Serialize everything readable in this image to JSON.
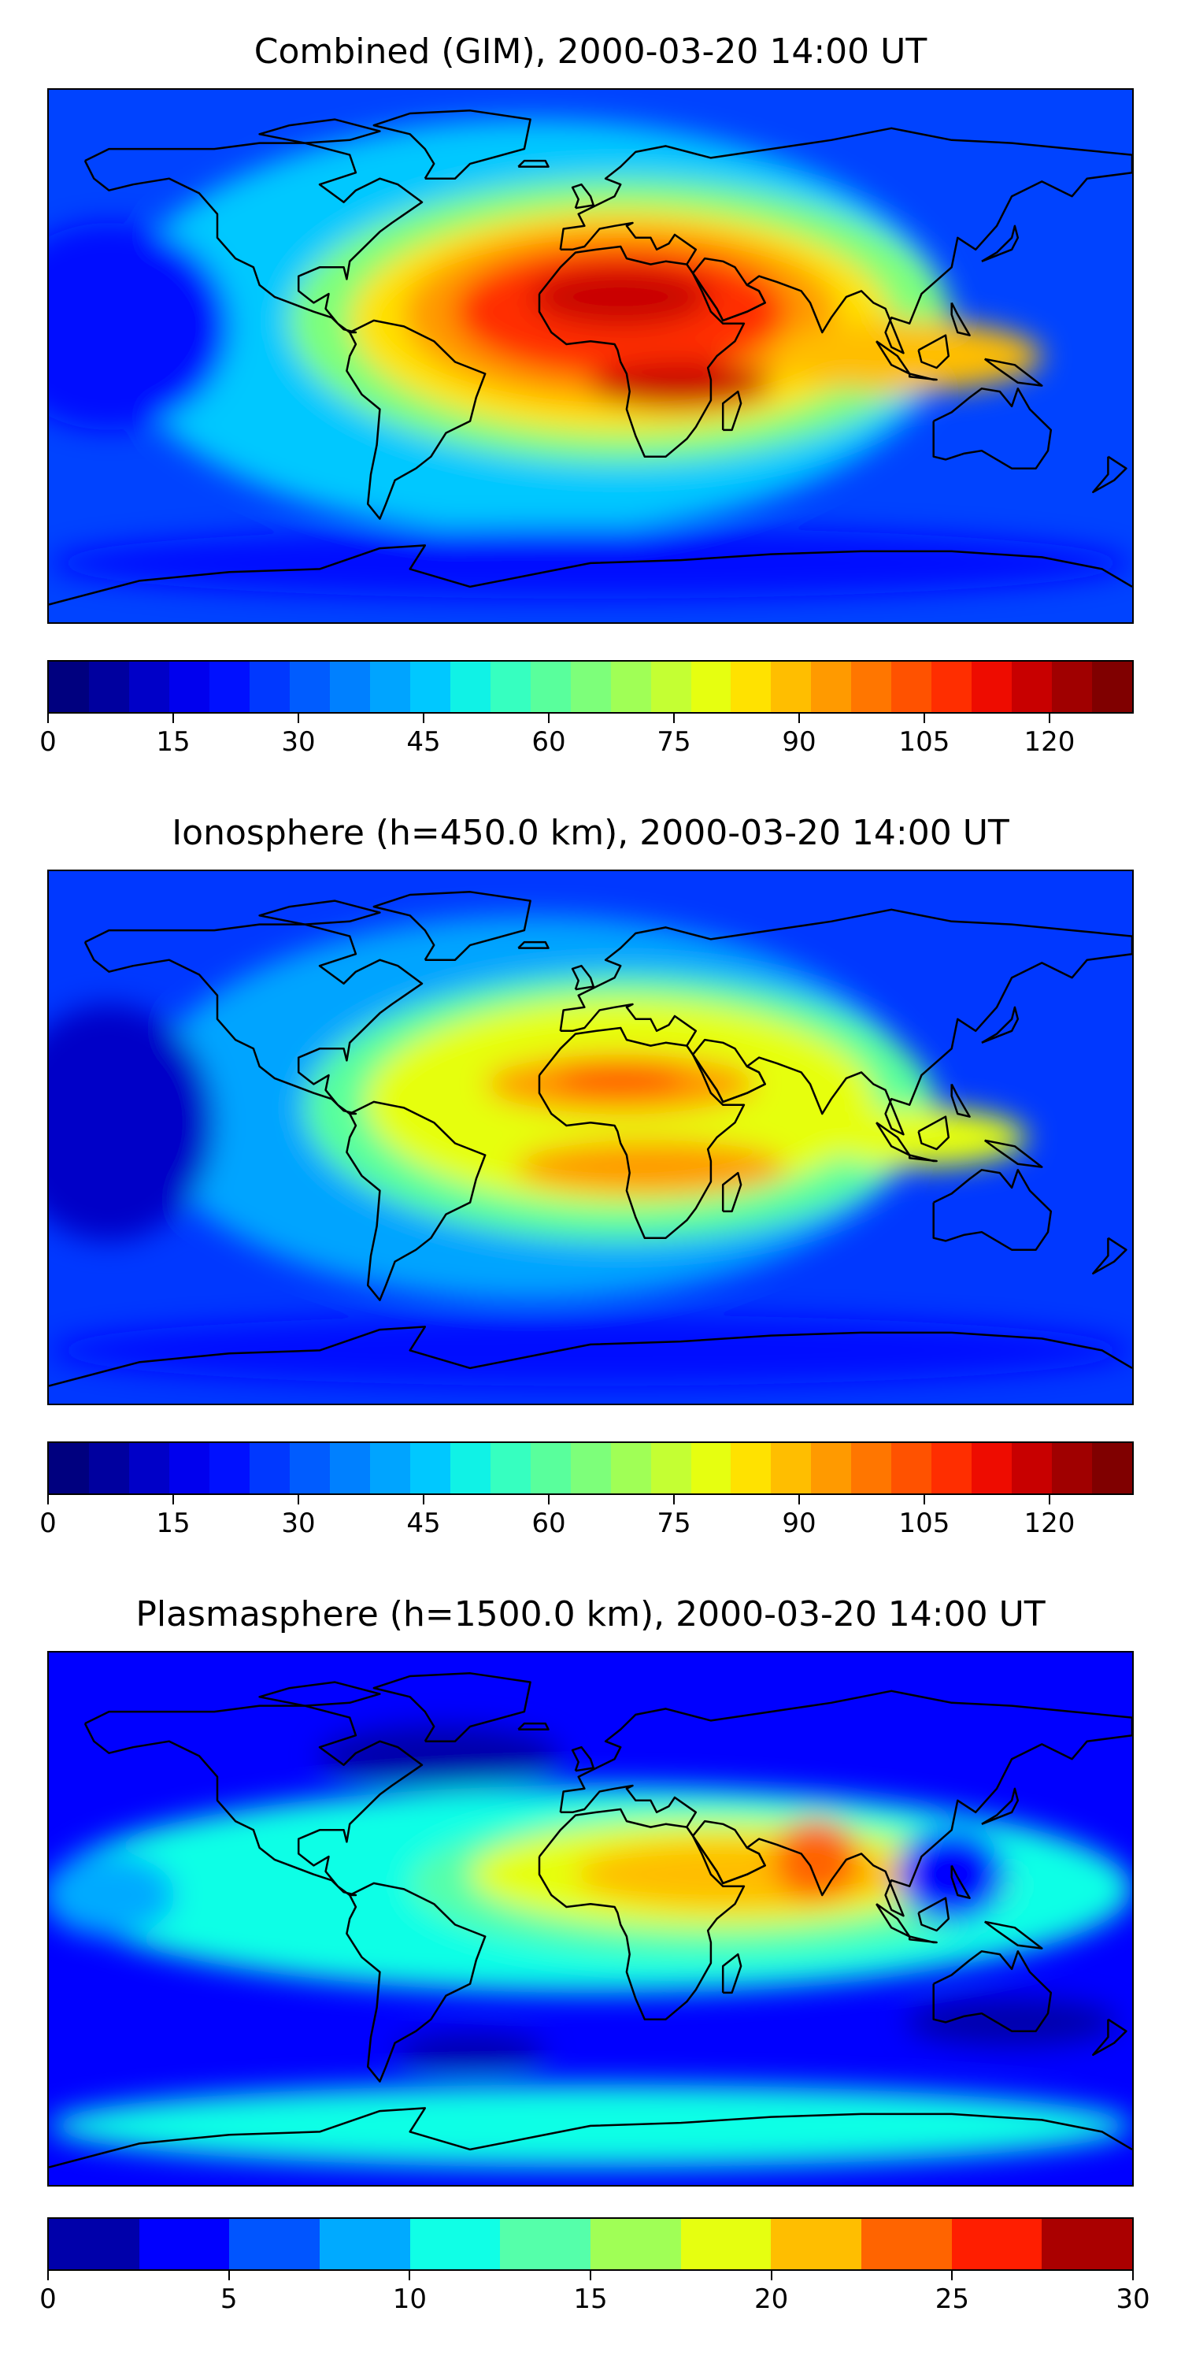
{
  "panels": [
    {
      "title": "Combined (GIM), 2000-03-20 14:00 UT",
      "colorbar": {
        "min": 0,
        "max": 130,
        "ticks": [
          "0",
          "15",
          "30",
          "45",
          "60",
          "75",
          "90",
          "105",
          "120"
        ],
        "tick_values": [
          0,
          15,
          30,
          45,
          60,
          75,
          90,
          105,
          120
        ],
        "colors": [
          "#00007f",
          "#00009f",
          "#0000c8",
          "#0000ee",
          "#0010ff",
          "#0038ff",
          "#005cff",
          "#0080ff",
          "#00a4ff",
          "#00c8ff",
          "#10f2e6",
          "#36ffc0",
          "#59ff9c",
          "#7dff7a",
          "#a0ff56",
          "#c4ff33",
          "#e6ff10",
          "#ffe200",
          "#ffbe00",
          "#ff9a00",
          "#ff7600",
          "#ff5200",
          "#ff2e00",
          "#ee0c00",
          "#c80000",
          "#a00000",
          "#800000"
        ]
      },
      "field": {
        "background": "#0043ff",
        "blobs": [
          {
            "lon": -20,
            "lat": 10,
            "rx": 140,
            "ry": 70,
            "color": "#00c8ff"
          },
          {
            "lon": 10,
            "lat": 12,
            "rx": 110,
            "ry": 48,
            "color": "#7dff7a"
          },
          {
            "lon": 10,
            "lat": 12,
            "rx": 90,
            "ry": 38,
            "color": "#ffe200"
          },
          {
            "lon": 10,
            "lat": 14,
            "rx": 72,
            "ry": 30,
            "color": "#ff9a00"
          },
          {
            "lon": 10,
            "lat": 15,
            "rx": 55,
            "ry": 22,
            "color": "#ff2e00"
          },
          {
            "lon": 10,
            "lat": 20,
            "rx": 30,
            "ry": 10,
            "color": "#c80000"
          },
          {
            "lon": 30,
            "lat": -10,
            "rx": 30,
            "ry": 8,
            "color": "#c80000"
          },
          {
            "lon": 105,
            "lat": 0,
            "rx": 45,
            "ry": 12,
            "color": "#ffbe00"
          },
          {
            "lon": -160,
            "lat": 10,
            "rx": 40,
            "ry": 35,
            "color": "#0010ff"
          },
          {
            "lon": 0,
            "lat": -70,
            "rx": 180,
            "ry": 12,
            "color": "#0010ff"
          }
        ]
      }
    },
    {
      "title": "Ionosphere  (h=450.0 km), 2000-03-20 14:00 UT",
      "colorbar": {
        "min": 0,
        "max": 130,
        "ticks": [
          "0",
          "15",
          "30",
          "45",
          "60",
          "75",
          "90",
          "105",
          "120"
        ],
        "tick_values": [
          0,
          15,
          30,
          45,
          60,
          75,
          90,
          105,
          120
        ],
        "colors": [
          "#00007f",
          "#00009f",
          "#0000c8",
          "#0000ee",
          "#0010ff",
          "#0038ff",
          "#005cff",
          "#0080ff",
          "#00a4ff",
          "#00c8ff",
          "#10f2e6",
          "#36ffc0",
          "#59ff9c",
          "#7dff7a",
          "#a0ff56",
          "#c4ff33",
          "#e6ff10",
          "#ffe200",
          "#ffbe00",
          "#ff9a00",
          "#ff7600",
          "#ff5200",
          "#ff2e00",
          "#ee0c00",
          "#c80000",
          "#a00000",
          "#800000"
        ]
      },
      "field": {
        "background": "#0038ff",
        "blobs": [
          {
            "lon": -20,
            "lat": 10,
            "rx": 130,
            "ry": 65,
            "color": "#00a4ff"
          },
          {
            "lon": 10,
            "lat": 10,
            "rx": 105,
            "ry": 45,
            "color": "#59ff9c"
          },
          {
            "lon": 10,
            "lat": 12,
            "rx": 85,
            "ry": 35,
            "color": "#e6ff10"
          },
          {
            "lon": 10,
            "lat": 18,
            "rx": 45,
            "ry": 10,
            "color": "#ff9a00"
          },
          {
            "lon": 20,
            "lat": -10,
            "rx": 45,
            "ry": 9,
            "color": "#ff9a00"
          },
          {
            "lon": 10,
            "lat": 20,
            "rx": 22,
            "ry": 5,
            "color": "#ff5200"
          },
          {
            "lon": 110,
            "lat": 0,
            "rx": 35,
            "ry": 10,
            "color": "#e6ff10"
          },
          {
            "lon": -160,
            "lat": 5,
            "rx": 35,
            "ry": 40,
            "color": "#0000c8"
          },
          {
            "lon": 0,
            "lat": -72,
            "rx": 180,
            "ry": 12,
            "color": "#0010ff"
          }
        ]
      }
    },
    {
      "title": "Plasmasphere (h=1500.0 km), 2000-03-20 14:00 UT",
      "colorbar": {
        "min": 0,
        "max": 30,
        "ticks": [
          "0",
          "5",
          "10",
          "15",
          "20",
          "25",
          "30"
        ],
        "tick_values": [
          0,
          5,
          10,
          15,
          20,
          25,
          30
        ],
        "colors": [
          "#0000aa",
          "#0000ff",
          "#0055ff",
          "#00aaff",
          "#10ffe6",
          "#55ffaa",
          "#a0ff56",
          "#e6ff10",
          "#ffbe00",
          "#ff6400",
          "#ff1e00",
          "#aa0000"
        ]
      },
      "field": {
        "background": "#0000ff",
        "blobs": [
          {
            "lon": 0,
            "lat": 10,
            "rx": 180,
            "ry": 35,
            "color": "#10ffe6"
          },
          {
            "lon": 40,
            "lat": 12,
            "rx": 100,
            "ry": 25,
            "color": "#55ffaa"
          },
          {
            "lon": 40,
            "lat": 15,
            "rx": 80,
            "ry": 18,
            "color": "#e6ff10"
          },
          {
            "lon": 50,
            "lat": 15,
            "rx": 55,
            "ry": 12,
            "color": "#ffbe00"
          },
          {
            "lon": 75,
            "lat": 20,
            "rx": 14,
            "ry": 14,
            "color": "#ff6400"
          },
          {
            "lon": 120,
            "lat": 15,
            "rx": 18,
            "ry": 16,
            "color": "#0000ff"
          },
          {
            "lon": -160,
            "lat": 8,
            "rx": 22,
            "ry": 14,
            "color": "#00aaff"
          },
          {
            "lon": 0,
            "lat": -70,
            "rx": 180,
            "ry": 14,
            "color": "#10ffe6"
          },
          {
            "lon": -50,
            "lat": 55,
            "rx": 40,
            "ry": 10,
            "color": "#0000aa"
          },
          {
            "lon": -40,
            "lat": -45,
            "rx": 25,
            "ry": 6,
            "color": "#0000aa"
          },
          {
            "lon": 140,
            "lat": -35,
            "rx": 35,
            "ry": 8,
            "color": "#0000aa"
          }
        ]
      }
    }
  ]
}
